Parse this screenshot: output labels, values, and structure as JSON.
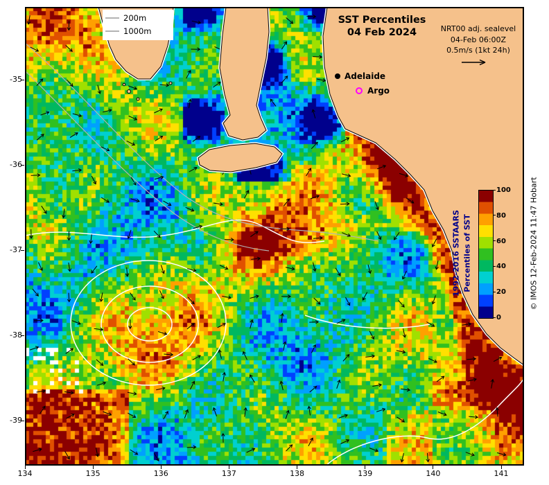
{
  "header": {
    "title_line1": "SST Percentiles",
    "title_line2": "04 Feb 2024",
    "annotation_line1": "NRT00 adj. sealevel",
    "annotation_line2": "04-Feb 06:00Z",
    "annotation_line3": "0.5m/s (1kt 24h)"
  },
  "contour_legend": {
    "item1": "200m",
    "item2": "1000m"
  },
  "markers": {
    "adelaide_label": "Adelaide",
    "argo_label": "Argo",
    "argo_color": "#ff00ff",
    "adelaide_color": "#000000"
  },
  "colorbar": {
    "label_line1": "1992-2016 SSTAARS",
    "label_line2": "Percentiles of SST",
    "label_color": "#00008b",
    "ticks": [
      100,
      80,
      60,
      40,
      20,
      0
    ],
    "colors_low_to_high": [
      "#00008c",
      "#0040ff",
      "#00a0ff",
      "#00d0d0",
      "#00b860",
      "#30c020",
      "#a0e000",
      "#ffe000",
      "#ffa000",
      "#e05000",
      "#8b0000"
    ]
  },
  "axes": {
    "x_ticks": [
      134,
      135,
      136,
      137,
      138,
      139,
      140,
      141
    ],
    "y_ticks": [
      -35,
      -36,
      -37,
      -38,
      -39
    ]
  },
  "copyright": "© IMOS 12-Feb-2024 11:47 Hobart",
  "map": {
    "land_color": "#f5c18b",
    "coastline_color": "#000000",
    "sea_contour_color": "#ffffff",
    "bathy_contour_color": "#b3b3b3",
    "arrow_color": "#000000"
  },
  "chart_data": {
    "type": "heatmap",
    "title": "SST Percentiles 04 Feb 2024",
    "x_ticks": [
      134,
      135,
      136,
      137,
      138,
      139,
      140,
      141
    ],
    "y_ticks": [
      -35,
      -36,
      -37,
      -38,
      -39
    ],
    "colorbar": {
      "range": [
        0,
        100
      ],
      "ticks": [
        0,
        20,
        40,
        60,
        80,
        100
      ],
      "label": "1992-2016 SSTAARS Percentiles of SST"
    },
    "overlays": [
      "velocity arrows 0.5m/s (1kt 24h)",
      "NRT00 adjusted sealevel contours",
      "bathymetry contours 200m and 1000m",
      "Adelaide city marker",
      "Argo float marker"
    ]
  }
}
